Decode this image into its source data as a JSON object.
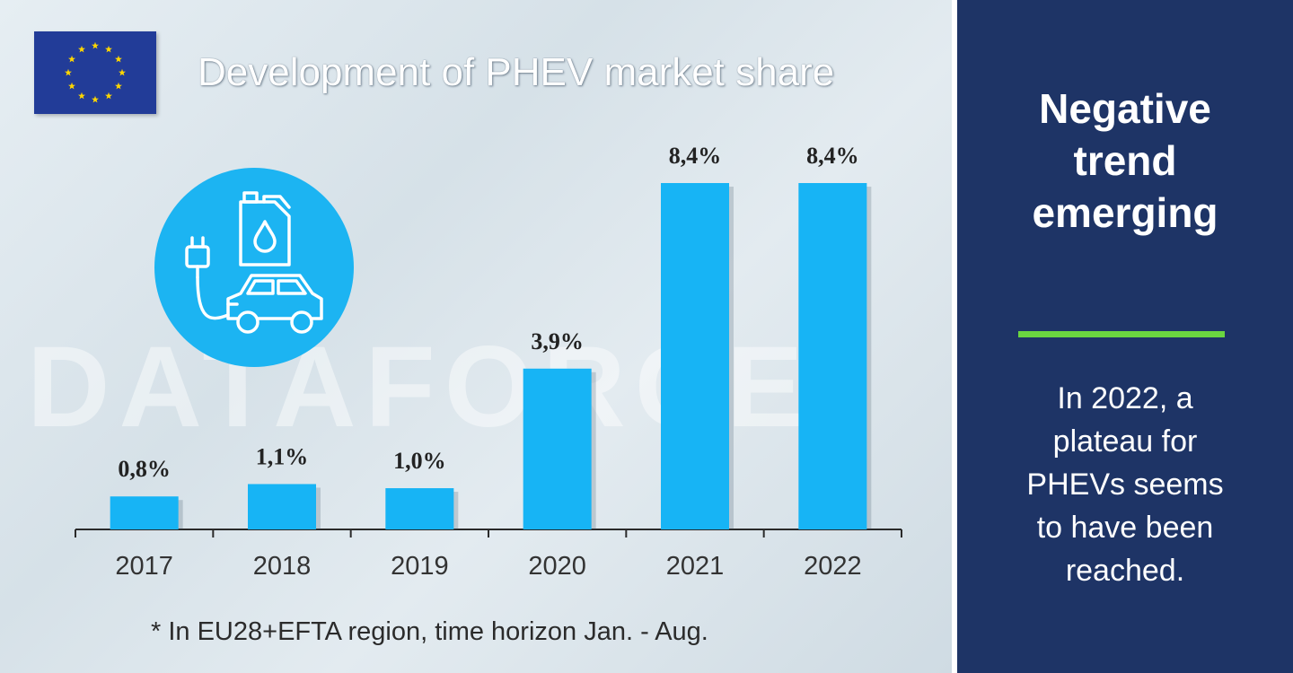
{
  "title": "Development of PHEV market share",
  "watermark": "DATAFORCE",
  "footnote": "* In EU28+EFTA region, time horizon Jan. - Aug.",
  "sidebar": {
    "headline": "Negative\ntrend\nemerging",
    "summary": "In 2022, a\nplateau for\nPHEVs seems\nto have been\nreached.",
    "divider_color": "#6ad640",
    "background_color": "#1e3466"
  },
  "icons": {
    "flag": "eu-flag-icon",
    "illustration": "phev-car-plug-fuel-icon"
  },
  "colors": {
    "bar": "#17b4f5",
    "icon_circle": "#1cb4f2"
  },
  "chart_data": {
    "type": "bar",
    "title": "Development of PHEV market share",
    "categories": [
      "2017",
      "2018",
      "2019",
      "2020",
      "2021",
      "2022"
    ],
    "values": [
      0.8,
      1.1,
      1.0,
      3.9,
      8.4,
      8.4
    ],
    "value_labels": [
      "0,8%",
      "1,1%",
      "1,0%",
      "3,9%",
      "8,4%",
      "8,4%"
    ],
    "unit": "%",
    "ylim": [
      0,
      8.4
    ],
    "grid": false,
    "legend": "none"
  }
}
